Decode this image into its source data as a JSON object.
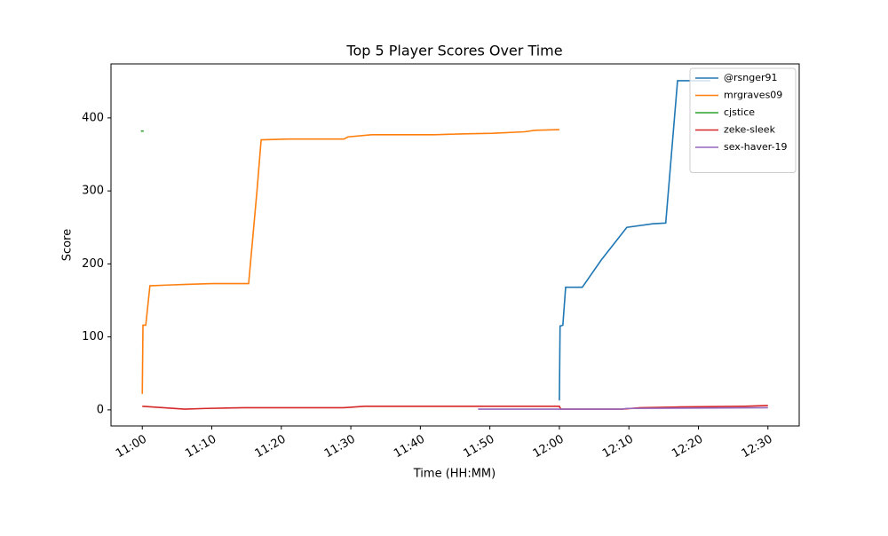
{
  "chart_data": {
    "type": "line",
    "title": "Top 5 Player Scores Over Time",
    "x_label": "Time (HH:MM)",
    "y_label": "Score",
    "series": [
      {
        "name": "@rsnger91",
        "color": "#1f77b4",
        "x": [
          60,
          60.1,
          60.5,
          60.9,
          63.3,
          66,
          69.7,
          73.4,
          75.3,
          77,
          81.7
        ],
        "values": [
          13,
          115,
          116,
          168,
          168,
          205,
          250,
          255,
          256,
          451,
          451
        ]
      },
      {
        "name": "mrgraves09",
        "color": "#ff7f0e",
        "x": [
          0,
          0.1,
          0.5,
          1.1,
          3.5,
          6.4,
          10,
          15.3,
          16.5,
          17.1,
          21,
          29,
          29.6,
          33,
          42,
          45.7,
          50.4,
          55,
          56.5,
          60
        ],
        "values": [
          22,
          116,
          116,
          170,
          171,
          172,
          173,
          173,
          300,
          370,
          371,
          371,
          374,
          377,
          377,
          378,
          379,
          381,
          383,
          384
        ]
      },
      {
        "name": "cjstice",
        "color": "#2ca02c",
        "x": [
          -0.2,
          0.2
        ],
        "values": [
          382,
          382
        ]
      },
      {
        "name": "zeke-sleek",
        "color": "#d62728",
        "x": [
          0,
          6.1,
          9.2,
          14.7,
          29,
          32,
          60,
          60.2,
          69,
          71.7,
          77.2,
          86.6,
          90
        ],
        "values": [
          5,
          1,
          2,
          3,
          3,
          5,
          5,
          1,
          1,
          3,
          4,
          5,
          6
        ]
      },
      {
        "name": "sex-haver-19",
        "color": "#9467bd",
        "x": [
          48.3,
          69,
          69.7,
          90
        ],
        "values": [
          1,
          1,
          2,
          3
        ]
      }
    ],
    "xlim": [
      -4.5,
      94.5
    ],
    "xticks": [
      {
        "value": 0,
        "label": "11:00"
      },
      {
        "value": 10,
        "label": "11:10"
      },
      {
        "value": 20,
        "label": "11:20"
      },
      {
        "value": 30,
        "label": "11:30"
      },
      {
        "value": 40,
        "label": "11:40"
      },
      {
        "value": 50,
        "label": "11:50"
      },
      {
        "value": 60,
        "label": "12:00"
      },
      {
        "value": 70,
        "label": "12:10"
      },
      {
        "value": 80,
        "label": "12:20"
      },
      {
        "value": 90,
        "label": "12:30"
      }
    ],
    "ylim": [
      -22,
      474
    ],
    "yticks": [
      0,
      100,
      200,
      300,
      400
    ],
    "legend": "upper right"
  }
}
